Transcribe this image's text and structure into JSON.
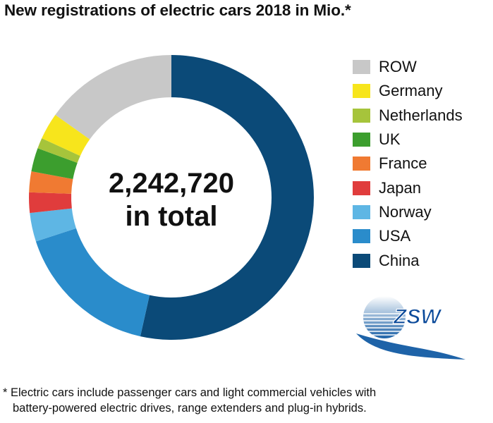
{
  "title": "New registrations of electric cars 2018 in Mio.*",
  "center": {
    "value": "2,242,720",
    "caption": "in total"
  },
  "footnote": {
    "line1": "* Electric cars include passenger cars and light commercial vehicles with",
    "line2": "battery-powered electric drives, range extenders and plug-in hybrids."
  },
  "logo": {
    "text": "ZSW"
  },
  "chart_data": {
    "type": "pie",
    "donut": true,
    "total": 2242720,
    "total_label": "2,242,720 in total",
    "legend_position": "right",
    "slices": [
      {
        "name": "China",
        "value": 1200000,
        "color": "#0b4a78"
      },
      {
        "name": "USA",
        "value": 370000,
        "color": "#2a8ccb"
      },
      {
        "name": "Norway",
        "value": 73000,
        "color": "#5eb6e4"
      },
      {
        "name": "Japan",
        "value": 52000,
        "color": "#e03c3c"
      },
      {
        "name": "France",
        "value": 53000,
        "color": "#f07a32"
      },
      {
        "name": "UK",
        "value": 60000,
        "color": "#3c9e2e"
      },
      {
        "name": "Netherlands",
        "value": 27000,
        "color": "#a6c43b"
      },
      {
        "name": "Germany",
        "value": 68000,
        "color": "#f7e51c"
      },
      {
        "name": "ROW",
        "value": 340000,
        "color": "#c8c8c8"
      }
    ],
    "legend_order": [
      "ROW",
      "Germany",
      "Netherlands",
      "UK",
      "France",
      "Japan",
      "Norway",
      "USA",
      "China"
    ]
  }
}
